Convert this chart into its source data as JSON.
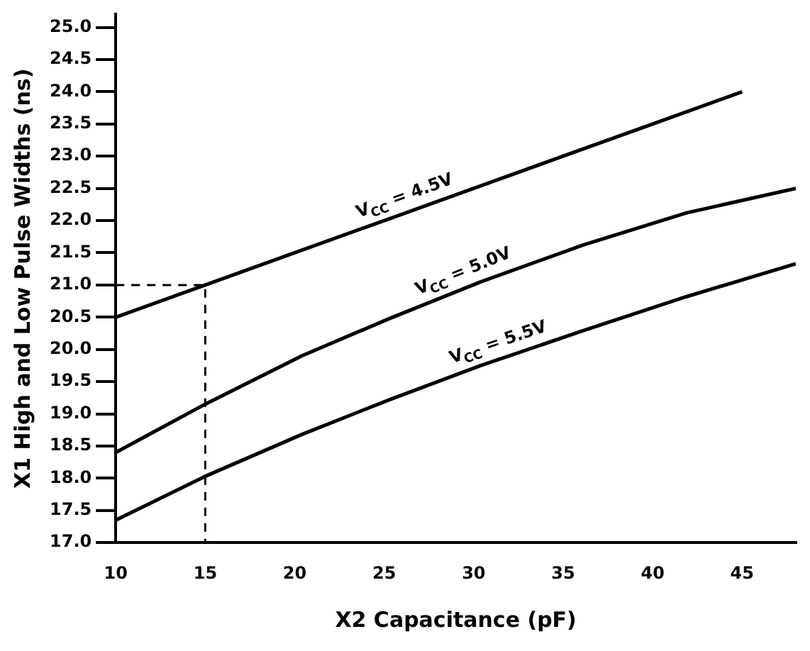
{
  "chart_data": {
    "type": "line",
    "xlabel": "X2 Capacitance (pF)",
    "ylabel": "X1 High and Low Pulse Widths (ns)",
    "xlim": [
      10,
      48
    ],
    "ylim": [
      17,
      25.2
    ],
    "xticks": [
      10,
      15,
      20,
      25,
      30,
      35,
      40,
      45
    ],
    "yticks": [
      {
        "value": 17,
        "label": "17.0"
      },
      {
        "value": 17.5,
        "label": "17.5"
      },
      {
        "value": 18,
        "label": "18.0"
      },
      {
        "value": 18.5,
        "label": "18.5"
      },
      {
        "value": 19,
        "label": "19.0"
      },
      {
        "value": 19.5,
        "label": "19.5"
      },
      {
        "value": 20,
        "label": "20.0"
      },
      {
        "value": 20.5,
        "label": "20.5"
      },
      {
        "value": 21,
        "label": "21.0"
      },
      {
        "value": 21.5,
        "label": "21.5"
      },
      {
        "value": 22,
        "label": "22.0"
      },
      {
        "value": 22.5,
        "label": "22.5"
      },
      {
        "value": 23,
        "label": "23.0"
      },
      {
        "value": 23.5,
        "label": "23.5"
      },
      {
        "value": 24,
        "label": "24.0"
      },
      {
        "value": 24.5,
        "label": "24.5"
      },
      {
        "value": 25,
        "label": "25.0"
      }
    ],
    "series": [
      {
        "name": "V$_{CC}$ = 4.5V",
        "color": "#000000",
        "x": [
          10,
          15,
          20,
          25,
          30,
          35,
          40,
          45
        ],
        "values": [
          20.5,
          21.0,
          21.5,
          22.0,
          22.5,
          23.0,
          23.5,
          24.0
        ]
      },
      {
        "name": "V$_{CC}$ = 5.0V",
        "color": "#000000",
        "x": [
          10,
          15,
          20.4,
          25.3,
          30.4,
          36.1,
          41.9,
          48
        ],
        "values": [
          18.4,
          19.15,
          19.9,
          20.48,
          21.05,
          21.62,
          22.12,
          22.5
        ]
      },
      {
        "name": "V$_{CC}$ = 5.5V",
        "color": "#000000",
        "x": [
          10,
          15,
          20.4,
          25.3,
          30.4,
          36.1,
          41.9,
          48
        ],
        "values": [
          17.35,
          18.03,
          18.68,
          19.22,
          19.75,
          20.29,
          20.82,
          21.33
        ]
      },
      {
        "color": "#000000",
        "line_style": "dashed",
        "x": [
          10,
          15,
          15
        ],
        "values": [
          21,
          21,
          17
        ]
      }
    ]
  }
}
